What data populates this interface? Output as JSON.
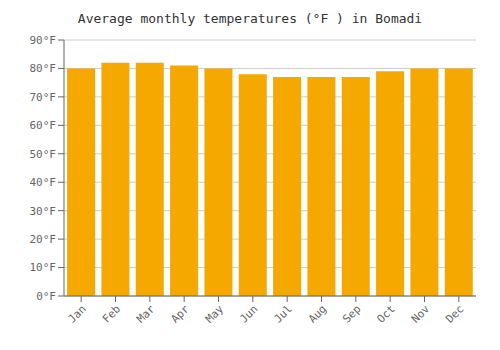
{
  "chart_data": {
    "type": "bar",
    "title": "Average monthly temperatures (°F ) in Bomadi",
    "categories": [
      "Jan",
      "Feb",
      "Mar",
      "Apr",
      "May",
      "Jun",
      "Jul",
      "Aug",
      "Sep",
      "Oct",
      "Nov",
      "Dec"
    ],
    "values": [
      80,
      82,
      82,
      81,
      80,
      78,
      77,
      77,
      77,
      79,
      80,
      80
    ],
    "color": "#F5A800",
    "ylim": [
      0,
      90
    ],
    "yticks": [
      {
        "value": 0,
        "label": "0°F"
      },
      {
        "value": 10,
        "label": "10°F"
      },
      {
        "value": 20,
        "label": "20°F"
      },
      {
        "value": 30,
        "label": "30°F"
      },
      {
        "value": 40,
        "label": "40°F"
      },
      {
        "value": 50,
        "label": "50°F"
      },
      {
        "value": 60,
        "label": "60°F"
      },
      {
        "value": 70,
        "label": "70°F"
      },
      {
        "value": 80,
        "label": "80°F"
      },
      {
        "value": 90,
        "label": "90°F"
      }
    ],
    "grid": true
  }
}
